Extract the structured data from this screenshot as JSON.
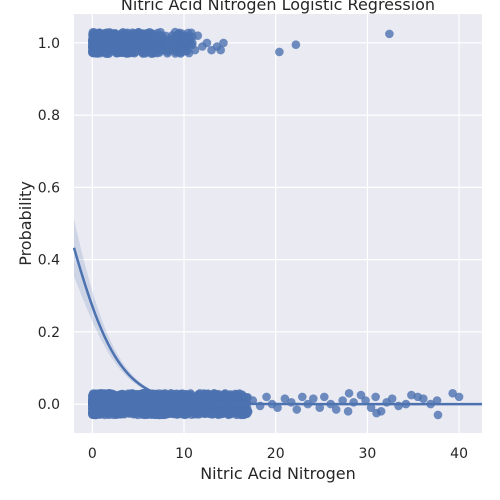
{
  "chart_data": {
    "type": "scatter",
    "title": "Nitric Acid Nitrogen Logistic Regression",
    "xlabel": "Nitric Acid Nitrogen",
    "ylabel": "Probability",
    "xlim": [
      -2,
      42.5
    ],
    "ylim": [
      -0.08,
      1.08
    ],
    "xticks": [
      0,
      10,
      20,
      30,
      40
    ],
    "yticks": [
      0.0,
      0.2,
      0.4,
      0.6,
      0.8,
      1.0
    ],
    "ytick_labels": [
      "0.0",
      "0.2",
      "0.4",
      "0.6",
      "0.8",
      "1.0"
    ],
    "grid": true,
    "legend": "none",
    "colors": {
      "points": "#4c72b0",
      "line": "#4c72b0",
      "band": "#4c72b0",
      "background": "#eaeaf2",
      "grid": "#ffffff"
    },
    "point_clusters": [
      {
        "label": 1,
        "x_min": 0,
        "x_max": 11,
        "y_jitter": 0.03,
        "count": 500
      },
      {
        "label": 0,
        "x_min": 0,
        "x_max": 17,
        "y_jitter": 0.03,
        "count": 1500
      }
    ],
    "outlier_points": [
      {
        "x": 11.5,
        "y": 1.02
      },
      {
        "x": 12.0,
        "y": 0.99
      },
      {
        "x": 12.5,
        "y": 1.0
      },
      {
        "x": 13.0,
        "y": 0.98
      },
      {
        "x": 13.6,
        "y": 0.99
      },
      {
        "x": 14.3,
        "y": 1.0
      },
      {
        "x": 14.0,
        "y": 0.98
      },
      {
        "x": 11.2,
        "y": 0.98
      },
      {
        "x": 20.4,
        "y": 0.975
      },
      {
        "x": 22.2,
        "y": 0.995
      },
      {
        "x": 32.4,
        "y": 1.025
      },
      {
        "x": 17.5,
        "y": 0.01
      },
      {
        "x": 18.3,
        "y": -0.005
      },
      {
        "x": 19.0,
        "y": 0.02
      },
      {
        "x": 19.6,
        "y": 0.0
      },
      {
        "x": 20.2,
        "y": -0.01
      },
      {
        "x": 21.0,
        "y": 0.015
      },
      {
        "x": 21.7,
        "y": 0.005
      },
      {
        "x": 22.3,
        "y": -0.015
      },
      {
        "x": 22.9,
        "y": 0.02
      },
      {
        "x": 23.5,
        "y": 0.0
      },
      {
        "x": 24.1,
        "y": 0.015
      },
      {
        "x": 24.8,
        "y": -0.01
      },
      {
        "x": 25.3,
        "y": 0.02
      },
      {
        "x": 26.0,
        "y": 0.0
      },
      {
        "x": 26.6,
        "y": -0.015
      },
      {
        "x": 27.3,
        "y": 0.01
      },
      {
        "x": 27.9,
        "y": -0.02
      },
      {
        "x": 28.5,
        "y": 0.005
      },
      {
        "x": 29.3,
        "y": 0.025
      },
      {
        "x": 29.8,
        "y": 0.01
      },
      {
        "x": 30.4,
        "y": -0.01
      },
      {
        "x": 30.9,
        "y": 0.02
      },
      {
        "x": 31.5,
        "y": -0.02
      },
      {
        "x": 32.1,
        "y": 0.005
      },
      {
        "x": 32.7,
        "y": 0.015
      },
      {
        "x": 33.4,
        "y": -0.005
      },
      {
        "x": 34.2,
        "y": 0.0
      },
      {
        "x": 34.8,
        "y": 0.025
      },
      {
        "x": 35.5,
        "y": 0.02
      },
      {
        "x": 36.1,
        "y": 0.015
      },
      {
        "x": 36.9,
        "y": 0.0
      },
      {
        "x": 37.6,
        "y": 0.01
      },
      {
        "x": 37.7,
        "y": -0.03
      },
      {
        "x": 39.3,
        "y": 0.03
      },
      {
        "x": 40.0,
        "y": 0.02
      },
      {
        "x": 28.0,
        "y": 0.03
      },
      {
        "x": 31.0,
        "y": -0.025
      }
    ],
    "logistic_fit": {
      "intercept": -0.99,
      "slope": -0.36,
      "x_range": [
        -2,
        42.5
      ]
    }
  }
}
